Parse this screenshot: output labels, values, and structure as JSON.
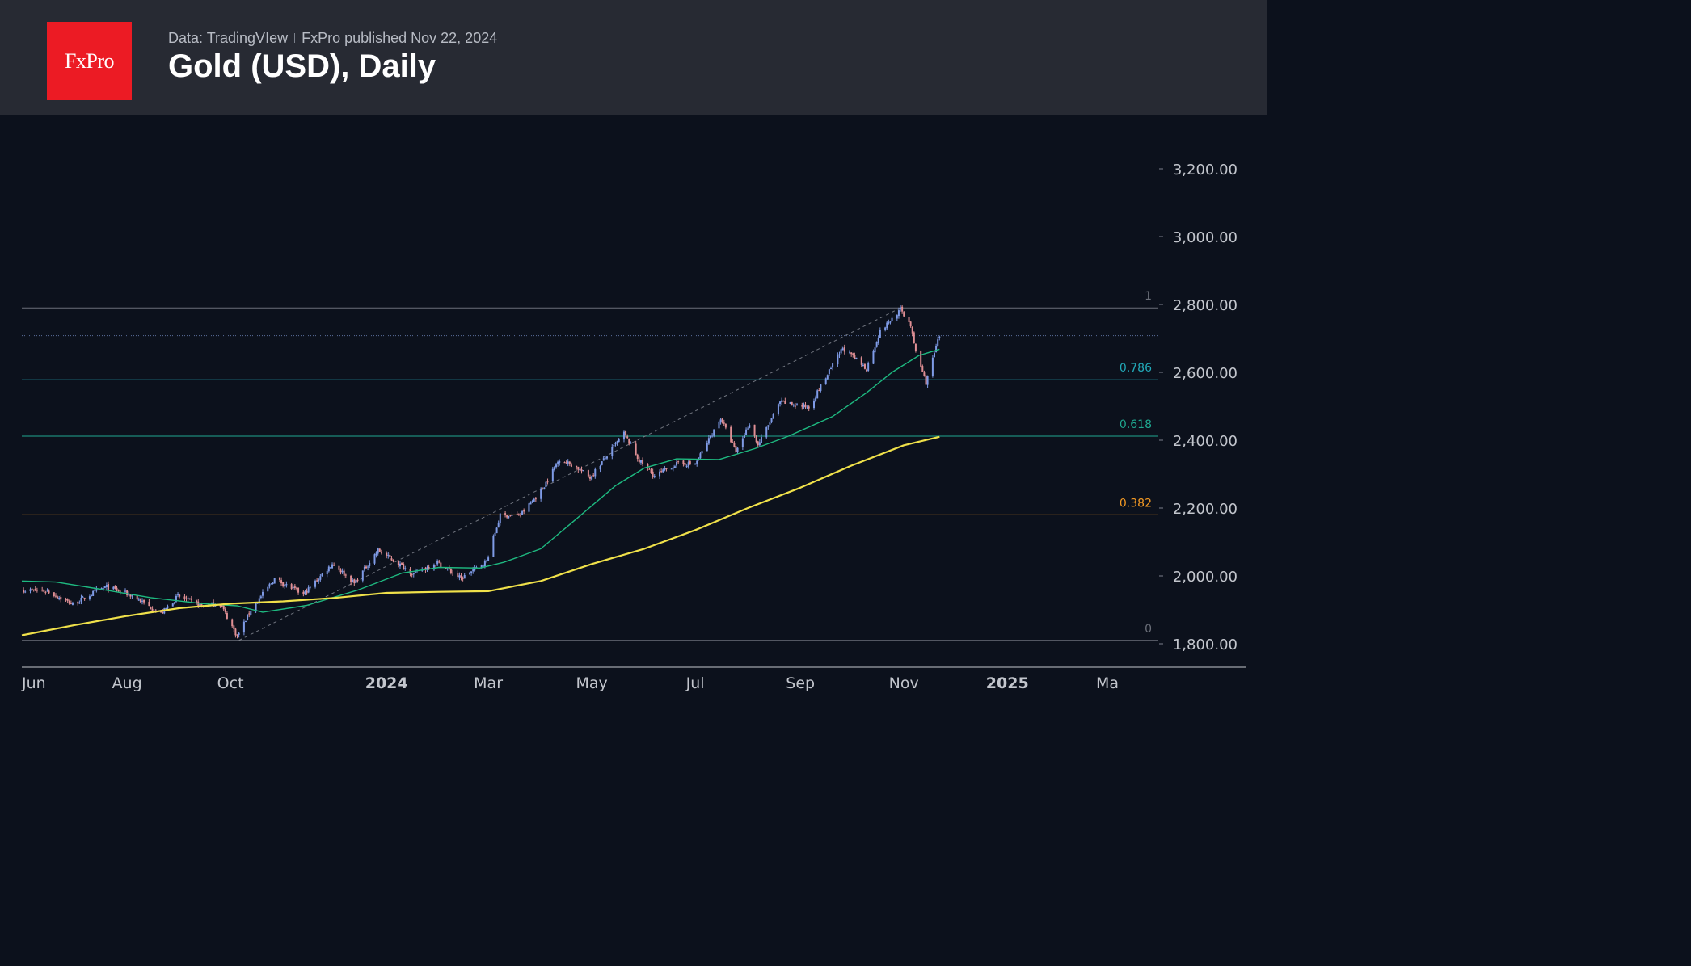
{
  "header": {
    "logo_text": "FxPro",
    "source": "Data: TradingVIew",
    "published": "FxPro published Nov 22, 2024",
    "title": "Gold (USD), Daily"
  },
  "colors": {
    "header_bg": "#272a33",
    "chart_bg": "#0c111c",
    "logo_red": "#ec1b24",
    "candle_up": "#7f9be6",
    "candle_down": "#e08f94",
    "ma_fast": "#1eb980",
    "ma_slow": "#f0e14a",
    "fib_0_786": "#22a9b8",
    "fib_0_618": "#1fa88f",
    "fib_0_382": "#f59a23"
  },
  "chart_data": {
    "type": "candlestick",
    "title": "Gold (USD), Daily",
    "ylim": [
      1770,
      3300
    ],
    "y_ticks": [
      1800,
      2000,
      2200,
      2400,
      2600,
      2800,
      3000,
      3200
    ],
    "y_tick_labels": [
      "1,800.00",
      "2,000.00",
      "2,200.00",
      "2,400.00",
      "2,600.00",
      "2,800.00",
      "3,000.00",
      "3,200.00"
    ],
    "x_range": [
      "2023-05-31",
      "2025-03-31"
    ],
    "x_ticks": [
      {
        "date": "2023-06-01",
        "label": "Jun",
        "bold": false
      },
      {
        "date": "2023-08-01",
        "label": "Aug",
        "bold": false
      },
      {
        "date": "2023-10-01",
        "label": "Oct",
        "bold": false
      },
      {
        "date": "2024-01-01",
        "label": "2024",
        "bold": true
      },
      {
        "date": "2024-03-01",
        "label": "Mar",
        "bold": false
      },
      {
        "date": "2024-05-01",
        "label": "May",
        "bold": false
      },
      {
        "date": "2024-07-01",
        "label": "Jul",
        "bold": false
      },
      {
        "date": "2024-09-01",
        "label": "Sep",
        "bold": false
      },
      {
        "date": "2024-11-01",
        "label": "Nov",
        "bold": false
      },
      {
        "date": "2025-01-01",
        "label": "2025",
        "bold": true
      },
      {
        "date": "2025-03-01",
        "label": "Ma",
        "bold": false
      }
    ],
    "grid": false,
    "last_price": 2708,
    "fibonacci": {
      "levels": [
        {
          "label": "1",
          "value": 2790
        },
        {
          "label": "0.786",
          "value": 2578
        },
        {
          "label": "0.618",
          "value": 2412
        },
        {
          "label": "0.382",
          "value": 2180
        },
        {
          "label": "0",
          "value": 1810
        }
      ],
      "anchor_low": {
        "date": "2023-10-06",
        "price": 1810
      },
      "anchor_high": {
        "date": "2024-10-30",
        "price": 2790
      }
    },
    "series": [
      {
        "kind": "moving_average",
        "color": "#1eb980",
        "points": [
          [
            "2023-05-31",
            1985
          ],
          [
            "2023-06-20",
            1982
          ],
          [
            "2023-07-15",
            1962
          ],
          [
            "2023-08-15",
            1936
          ],
          [
            "2023-09-15",
            1918
          ],
          [
            "2023-10-05",
            1912
          ],
          [
            "2023-10-20",
            1893
          ],
          [
            "2023-11-15",
            1913
          ],
          [
            "2023-12-15",
            1958
          ],
          [
            "2024-01-10",
            2008
          ],
          [
            "2024-02-01",
            2025
          ],
          [
            "2024-02-25",
            2023
          ],
          [
            "2024-03-10",
            2040
          ],
          [
            "2024-04-01",
            2080
          ],
          [
            "2024-04-20",
            2160
          ],
          [
            "2024-05-15",
            2266
          ],
          [
            "2024-06-01",
            2318
          ],
          [
            "2024-06-20",
            2345
          ],
          [
            "2024-07-15",
            2343
          ],
          [
            "2024-08-05",
            2375
          ],
          [
            "2024-08-25",
            2412
          ],
          [
            "2024-09-20",
            2470
          ],
          [
            "2024-10-10",
            2540
          ],
          [
            "2024-10-25",
            2600
          ],
          [
            "2024-11-10",
            2650
          ],
          [
            "2024-11-22",
            2668
          ]
        ]
      },
      {
        "kind": "moving_average",
        "color": "#f0e14a",
        "points": [
          [
            "2023-05-31",
            1825
          ],
          [
            "2023-07-01",
            1855
          ],
          [
            "2023-08-01",
            1882
          ],
          [
            "2023-09-01",
            1905
          ],
          [
            "2023-10-01",
            1918
          ],
          [
            "2023-11-01",
            1925
          ],
          [
            "2023-12-01",
            1935
          ],
          [
            "2024-01-01",
            1950
          ],
          [
            "2024-02-01",
            1953
          ],
          [
            "2024-03-01",
            1955
          ],
          [
            "2024-04-01",
            1985
          ],
          [
            "2024-05-01",
            2035
          ],
          [
            "2024-06-01",
            2080
          ],
          [
            "2024-07-01",
            2135
          ],
          [
            "2024-08-01",
            2200
          ],
          [
            "2024-09-01",
            2260
          ],
          [
            "2024-10-01",
            2325
          ],
          [
            "2024-11-01",
            2385
          ],
          [
            "2024-11-22",
            2410
          ]
        ]
      }
    ],
    "ohlc_keypoints": [
      [
        "2023-06-01",
        1958
      ],
      [
        "2023-06-15",
        1955
      ],
      [
        "2023-06-30",
        1916
      ],
      [
        "2023-07-14",
        1955
      ],
      [
        "2023-07-20",
        1968
      ],
      [
        "2023-08-04",
        1942
      ],
      [
        "2023-08-21",
        1888
      ],
      [
        "2023-08-31",
        1940
      ],
      [
        "2023-09-14",
        1912
      ],
      [
        "2023-09-25",
        1918
      ],
      [
        "2023-10-05",
        1822
      ],
      [
        "2023-10-13",
        1900
      ],
      [
        "2023-10-27",
        1992
      ],
      [
        "2023-11-13",
        1945
      ],
      [
        "2023-11-30",
        2036
      ],
      [
        "2023-12-04",
        2020
      ],
      [
        "2023-12-13",
        1978
      ],
      [
        "2023-12-27",
        2076
      ],
      [
        "2024-01-17",
        2006
      ],
      [
        "2024-01-31",
        2040
      ],
      [
        "2024-02-14",
        1992
      ],
      [
        "2024-02-29",
        2044
      ],
      [
        "2024-03-08",
        2178
      ],
      [
        "2024-03-20",
        2180
      ],
      [
        "2024-04-01",
        2250
      ],
      [
        "2024-04-12",
        2345
      ],
      [
        "2024-04-22",
        2320
      ],
      [
        "2024-04-30",
        2290
      ],
      [
        "2024-05-20",
        2420
      ],
      [
        "2024-05-29",
        2340
      ],
      [
        "2024-06-07",
        2295
      ],
      [
        "2024-06-20",
        2330
      ],
      [
        "2024-07-01",
        2330
      ],
      [
        "2024-07-16",
        2465
      ],
      [
        "2024-07-25",
        2365
      ],
      [
        "2024-08-02",
        2450
      ],
      [
        "2024-08-07",
        2385
      ],
      [
        "2024-08-20",
        2512
      ],
      [
        "2024-09-06",
        2497
      ],
      [
        "2024-09-20",
        2620
      ],
      [
        "2024-09-26",
        2672
      ],
      [
        "2024-10-10",
        2610
      ],
      [
        "2024-10-18",
        2720
      ],
      [
        "2024-10-30",
        2785
      ],
      [
        "2024-11-05",
        2740
      ],
      [
        "2024-11-07",
        2680
      ],
      [
        "2024-11-14",
        2570
      ],
      [
        "2024-11-22",
        2708
      ]
    ]
  }
}
